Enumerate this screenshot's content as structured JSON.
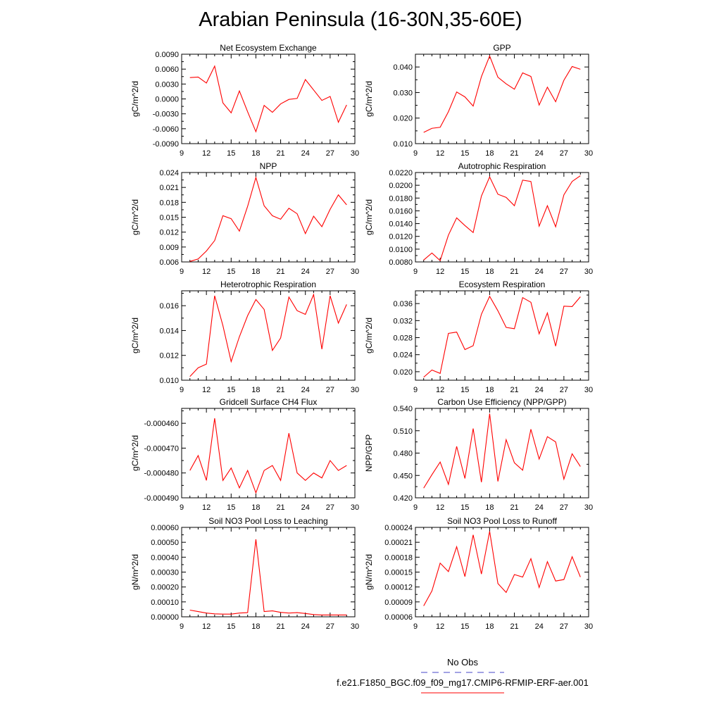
{
  "page": {
    "title": "Arabian Peninsula (16-30N,35-60E)"
  },
  "legend": {
    "obs_label": "No Obs",
    "obs_color": "#4646c8",
    "model_label": "f.e21.F1850_BGC.f09_f09_mg17.CMIP6-RFMIP-ERF-aer.001",
    "model_color": "#ff0000"
  },
  "chart_data": [
    {
      "type": "line",
      "title": "Net Ecosystem Exchange",
      "ylabel": "gC/m^2/d",
      "xlim": [
        9,
        30
      ],
      "xticks": [
        9,
        12,
        15,
        18,
        21,
        24,
        27,
        30
      ],
      "ylim": [
        -0.009,
        0.009
      ],
      "yticks": [
        "-0.0090",
        "-0.0060",
        "-0.0030",
        "0.0000",
        "0.0030",
        "0.0060",
        "0.0090"
      ],
      "x": [
        10,
        11,
        12,
        13,
        14,
        15,
        16,
        17,
        18,
        19,
        20,
        21,
        22,
        23,
        24,
        25,
        26,
        27,
        28,
        29
      ],
      "series": [
        {
          "values": [
            0.0043,
            0.0044,
            0.0032,
            0.0066,
            -0.0008,
            -0.0028,
            0.0016,
            -0.0026,
            -0.0066,
            -0.0013,
            -0.0027,
            -0.001,
            -0.0001,
            0.0001,
            0.0039,
            0.0018,
            -0.0003,
            0.0005,
            -0.0047,
            -0.0012
          ]
        }
      ]
    },
    {
      "type": "line",
      "title": "GPP",
      "ylabel": "gC/m^2/d",
      "xlim": [
        9,
        30
      ],
      "xticks": [
        9,
        12,
        15,
        18,
        21,
        24,
        27,
        30
      ],
      "ylim": [
        0.01,
        0.045
      ],
      "yticks": [
        "0.010",
        "0.020",
        "0.030",
        "0.040"
      ],
      "x": [
        10,
        11,
        12,
        13,
        14,
        15,
        16,
        17,
        18,
        19,
        20,
        21,
        22,
        23,
        24,
        25,
        26,
        27,
        28,
        29
      ],
      "series": [
        {
          "values": [
            0.0144,
            0.016,
            0.0164,
            0.0225,
            0.0302,
            0.0283,
            0.0247,
            0.0362,
            0.0443,
            0.036,
            0.0334,
            0.0313,
            0.0377,
            0.0363,
            0.0251,
            0.0321,
            0.0264,
            0.0348,
            0.0402,
            0.0391
          ]
        }
      ]
    },
    {
      "type": "line",
      "title": "NPP",
      "ylabel": "gC/m^2/d",
      "xlim": [
        9,
        30
      ],
      "xticks": [
        9,
        12,
        15,
        18,
        21,
        24,
        27,
        30
      ],
      "ylim": [
        0.006,
        0.024
      ],
      "yticks": [
        "0.006",
        "0.009",
        "0.012",
        "0.015",
        "0.018",
        "0.021",
        "0.024"
      ],
      "x": [
        10,
        11,
        12,
        13,
        14,
        15,
        16,
        17,
        18,
        19,
        20,
        21,
        22,
        23,
        24,
        25,
        26,
        27,
        28,
        29
      ],
      "series": [
        {
          "values": [
            0.0061,
            0.0066,
            0.0082,
            0.0103,
            0.0153,
            0.0147,
            0.0122,
            0.0172,
            0.023,
            0.0173,
            0.0153,
            0.0146,
            0.0168,
            0.0157,
            0.0117,
            0.0152,
            0.0131,
            0.0166,
            0.0195,
            0.0175
          ]
        }
      ]
    },
    {
      "type": "line",
      "title": "Autotrophic Respiration",
      "ylabel": "gC/m^2/d",
      "xlim": [
        9,
        30
      ],
      "xticks": [
        9,
        12,
        15,
        18,
        21,
        24,
        27,
        30
      ],
      "ylim": [
        0.008,
        0.022
      ],
      "yticks": [
        "0.0080",
        "0.0100",
        "0.0120",
        "0.0140",
        "0.0160",
        "0.0180",
        "0.0200",
        "0.0220"
      ],
      "x": [
        10,
        11,
        12,
        13,
        14,
        15,
        16,
        17,
        18,
        19,
        20,
        21,
        22,
        23,
        24,
        25,
        26,
        27,
        28,
        29
      ],
      "series": [
        {
          "values": [
            0.0083,
            0.0094,
            0.0082,
            0.0122,
            0.0149,
            0.0137,
            0.0126,
            0.0183,
            0.0213,
            0.0186,
            0.0181,
            0.0168,
            0.0208,
            0.0206,
            0.0136,
            0.0168,
            0.0135,
            0.0185,
            0.0206,
            0.0215
          ]
        }
      ]
    },
    {
      "type": "line",
      "title": "Heterotrophic Respiration",
      "ylabel": "gC/m^2/d",
      "xlim": [
        9,
        30
      ],
      "xticks": [
        9,
        12,
        15,
        18,
        21,
        24,
        27,
        30
      ],
      "ylim": [
        0.01,
        0.0172
      ],
      "yticks": [
        "0.010",
        "0.012",
        "0.014",
        "0.016"
      ],
      "x": [
        10,
        11,
        12,
        13,
        14,
        15,
        16,
        17,
        18,
        19,
        20,
        21,
        22,
        23,
        24,
        25,
        26,
        27,
        28,
        29
      ],
      "series": [
        {
          "values": [
            0.0103,
            0.011,
            0.0113,
            0.0168,
            0.0144,
            0.0115,
            0.0135,
            0.0152,
            0.0165,
            0.0157,
            0.0124,
            0.0134,
            0.0167,
            0.0156,
            0.0153,
            0.0169,
            0.0125,
            0.0168,
            0.0146,
            0.0161
          ]
        }
      ]
    },
    {
      "type": "line",
      "title": "Ecosystem Respiration",
      "ylabel": "gC/m^2/d",
      "xlim": [
        9,
        30
      ],
      "xticks": [
        9,
        12,
        15,
        18,
        21,
        24,
        27,
        30
      ],
      "ylim": [
        0.018,
        0.039
      ],
      "yticks": [
        "0.020",
        "0.024",
        "0.028",
        "0.032",
        "0.036"
      ],
      "x": [
        10,
        11,
        12,
        13,
        14,
        15,
        16,
        17,
        18,
        19,
        20,
        21,
        22,
        23,
        24,
        25,
        26,
        27,
        28,
        29
      ],
      "series": [
        {
          "values": [
            0.0187,
            0.0204,
            0.0196,
            0.029,
            0.0293,
            0.0252,
            0.0261,
            0.0335,
            0.0377,
            0.0343,
            0.0304,
            0.0301,
            0.0374,
            0.0363,
            0.0289,
            0.0338,
            0.026,
            0.0354,
            0.0353,
            0.0376
          ]
        }
      ]
    },
    {
      "type": "line",
      "title": "Gridcell Surface CH4 Flux",
      "ylabel": "gC/m^2/d",
      "xlim": [
        9,
        30
      ],
      "xticks": [
        9,
        12,
        15,
        18,
        21,
        24,
        27,
        30
      ],
      "ylim": [
        -0.00049,
        -0.000454
      ],
      "yticks": [
        "-0.000490",
        "-0.000480",
        "-0.000470",
        "-0.000460"
      ],
      "x": [
        10,
        11,
        12,
        13,
        14,
        15,
        16,
        17,
        18,
        19,
        20,
        21,
        22,
        23,
        24,
        25,
        26,
        27,
        28,
        29
      ],
      "series": [
        {
          "values": [
            -0.000479,
            -0.000473,
            -0.000483,
            -0.000458,
            -0.000483,
            -0.000478,
            -0.000486,
            -0.000479,
            -0.000488,
            -0.000479,
            -0.000477,
            -0.000483,
            -0.000464,
            -0.00048,
            -0.000483,
            -0.00048,
            -0.000482,
            -0.000475,
            -0.000479,
            -0.000477
          ]
        }
      ]
    },
    {
      "type": "line",
      "title": "Carbon Use Efficiency (NPP/GPP)",
      "ylabel": "NPP/GPP",
      "xlim": [
        9,
        30
      ],
      "xticks": [
        9,
        12,
        15,
        18,
        21,
        24,
        27,
        30
      ],
      "ylim": [
        0.42,
        0.54
      ],
      "yticks": [
        "0.420",
        "0.450",
        "0.480",
        "0.510",
        "0.540"
      ],
      "x": [
        10,
        11,
        12,
        13,
        14,
        15,
        16,
        17,
        18,
        19,
        20,
        21,
        22,
        23,
        24,
        25,
        26,
        27,
        28,
        29
      ],
      "series": [
        {
          "values": [
            0.433,
            0.451,
            0.468,
            0.438,
            0.489,
            0.446,
            0.513,
            0.441,
            0.533,
            0.442,
            0.498,
            0.467,
            0.457,
            0.512,
            0.472,
            0.502,
            0.495,
            0.445,
            0.479,
            0.462
          ]
        }
      ]
    },
    {
      "type": "line",
      "title": "Soil NO3 Pool Loss to Leaching",
      "ylabel": "gN/m^2/d",
      "xlim": [
        9,
        30
      ],
      "xticks": [
        9,
        12,
        15,
        18,
        21,
        24,
        27,
        30
      ],
      "ylim": [
        0,
        0.0006
      ],
      "yticks": [
        "0.00000",
        "0.00010",
        "0.00020",
        "0.00030",
        "0.00040",
        "0.00050",
        "0.00060"
      ],
      "x": [
        10,
        11,
        12,
        13,
        14,
        15,
        16,
        17,
        18,
        19,
        20,
        21,
        22,
        23,
        24,
        25,
        26,
        27,
        28,
        29
      ],
      "series": [
        {
          "values": [
            4.5e-05,
            3.5e-05,
            2.5e-05,
            2e-05,
            1.8e-05,
            1.8e-05,
            2.5e-05,
            2.8e-05,
            0.00052,
            3.5e-05,
            4e-05,
            3e-05,
            2.5e-05,
            2.8e-05,
            2.2e-05,
            1.5e-05,
            1.2e-05,
            1.2e-05,
            1.2e-05,
            1.2e-05
          ]
        }
      ]
    },
    {
      "type": "line",
      "title": "Soil NO3 Pool Loss to Runoff",
      "ylabel": "gN/m^2/d",
      "xlim": [
        9,
        30
      ],
      "xticks": [
        9,
        12,
        15,
        18,
        21,
        24,
        27,
        30
      ],
      "ylim": [
        6e-05,
        0.00024
      ],
      "yticks": [
        "0.00006",
        "0.00009",
        "0.00012",
        "0.00015",
        "0.00018",
        "0.00021",
        "0.00024"
      ],
      "x": [
        10,
        11,
        12,
        13,
        14,
        15,
        16,
        17,
        18,
        19,
        20,
        21,
        22,
        23,
        24,
        25,
        26,
        27,
        28,
        29
      ],
      "series": [
        {
          "values": [
            8.2e-05,
            0.000112,
            0.000168,
            0.000151,
            0.000201,
            0.000141,
            0.000225,
            0.000146,
            0.000232,
            0.000127,
            0.000109,
            0.000145,
            0.00014,
            0.000177,
            0.000119,
            0.000171,
            0.000132,
            0.000135,
            0.000181,
            0.00014
          ]
        }
      ]
    }
  ]
}
